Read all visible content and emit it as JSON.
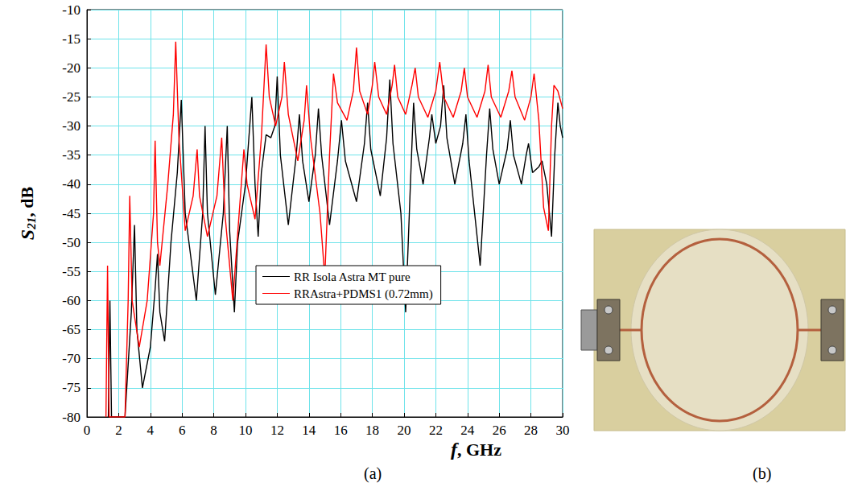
{
  "chart_data": {
    "type": "line",
    "x_label": "f, GHz",
    "y_label": "S21, dB",
    "xlim": [
      0,
      30
    ],
    "xticks": [
      0,
      2,
      4,
      6,
      8,
      10,
      12,
      14,
      16,
      18,
      20,
      22,
      24,
      26,
      28,
      30
    ],
    "ylim": [
      -80,
      -10
    ],
    "yticks": [
      -80,
      -75,
      -70,
      -65,
      -60,
      -55,
      -50,
      -45,
      -40,
      -35,
      -30,
      -25,
      -20,
      -15,
      -10
    ],
    "grid": true,
    "legend": "lower right",
    "series": [
      {
        "name": "RR Isola Astra MT pure",
        "color": "#000000",
        "line_style": "solid",
        "x": [
          1.35,
          1.45,
          1.55,
          2.4,
          2.8,
          3.0,
          3.15,
          3.5,
          4.0,
          4.3,
          4.45,
          4.6,
          4.9,
          5.3,
          5.7,
          5.95,
          6.2,
          6.9,
          7.3,
          7.45,
          7.6,
          8.1,
          8.6,
          8.85,
          9.0,
          9.3,
          9.5,
          10.0,
          10.4,
          10.6,
          10.8,
          11.0,
          11.3,
          11.6,
          11.85,
          12.0,
          12.2,
          12.7,
          13.2,
          13.4,
          13.6,
          14.0,
          14.4,
          14.6,
          14.8,
          15.3,
          15.8,
          16.05,
          16.3,
          17.0,
          17.5,
          17.7,
          17.9,
          18.5,
          18.9,
          19.1,
          19.3,
          19.8,
          20.1,
          20.4,
          20.6,
          20.8,
          21.2,
          21.6,
          21.75,
          22.0,
          22.3,
          22.5,
          22.7,
          23.2,
          23.7,
          23.9,
          24.1,
          24.8,
          25.2,
          25.4,
          25.6,
          26.0,
          26.5,
          26.7,
          26.9,
          27.4,
          27.7,
          27.85,
          28.1,
          28.5,
          28.7,
          29.0,
          29.3,
          29.5,
          29.7,
          29.85,
          30.0
        ],
        "values": [
          -80,
          -60,
          -80,
          -80,
          -62,
          -47,
          -65,
          -75,
          -68,
          -58,
          -52,
          -62,
          -67,
          -50,
          -38,
          -25.5,
          -45,
          -60,
          -45,
          -30,
          -45,
          -59,
          -45,
          -30,
          -48,
          -62,
          -50,
          -40,
          -25,
          -40,
          -49,
          -38,
          -31.5,
          -32,
          -30,
          -21.5,
          -35,
          -47,
          -35,
          -28,
          -36,
          -43,
          -35,
          -27,
          -35,
          -47,
          -36,
          -29,
          -36,
          -43,
          -33,
          -26,
          -34,
          -42,
          -32,
          -22,
          -33,
          -45,
          -62,
          -40,
          -26,
          -34,
          -40,
          -32,
          -28,
          -33,
          -30,
          -23,
          -32,
          -40,
          -33,
          -28,
          -36,
          -54,
          -35,
          -27,
          -34,
          -40,
          -34,
          -29,
          -35,
          -40,
          -35,
          -33,
          -38,
          -37,
          -36,
          -40,
          -49,
          -35,
          -26,
          -30,
          -32
        ]
      },
      {
        "name": "RRAstra+PDMS1 (0.72mm)",
        "color": "#ff0000",
        "line_style": "solid",
        "x": [
          1.2,
          1.3,
          1.4,
          2.4,
          2.6,
          2.7,
          2.85,
          3.3,
          3.8,
          4.2,
          4.3,
          4.45,
          4.6,
          5.1,
          5.45,
          5.6,
          5.8,
          6.2,
          6.7,
          6.95,
          7.1,
          7.6,
          8.2,
          8.5,
          8.7,
          9.2,
          9.6,
          9.9,
          10.1,
          10.6,
          11.0,
          11.3,
          11.5,
          11.9,
          12.3,
          12.45,
          12.7,
          13.3,
          13.7,
          13.85,
          14.1,
          14.7,
          15.0,
          15.3,
          15.55,
          15.8,
          16.4,
          16.8,
          17.0,
          17.2,
          17.7,
          18.0,
          18.15,
          18.4,
          18.9,
          19.25,
          19.4,
          19.6,
          20.1,
          20.5,
          20.7,
          20.9,
          21.5,
          22.0,
          22.25,
          22.5,
          23.1,
          23.6,
          23.8,
          24.0,
          24.6,
          25.1,
          25.3,
          25.5,
          26.1,
          26.6,
          26.8,
          27.0,
          27.6,
          28.0,
          28.2,
          28.5,
          28.8,
          29.1,
          29.3,
          29.45,
          29.7,
          30.0
        ],
        "values": [
          -80,
          -54,
          -80,
          -80,
          -60,
          -42,
          -60,
          -68,
          -60,
          -45,
          -32.5,
          -50,
          -54,
          -40,
          -28,
          -15.5,
          -32,
          -48,
          -42,
          -34,
          -42,
          -49,
          -42,
          -32,
          -45,
          -60,
          -45,
          -34,
          -40,
          -46,
          -32,
          -16,
          -25,
          -30,
          -25,
          -19,
          -28,
          -36,
          -29,
          -23,
          -32,
          -45,
          -56,
          -35,
          -21,
          -26,
          -29,
          -24,
          -16.5,
          -24,
          -28,
          -23,
          -19,
          -25,
          -28,
          -23,
          -19.5,
          -25,
          -28,
          -23,
          -20,
          -25,
          -28.5,
          -24,
          -19,
          -25,
          -28.5,
          -24,
          -20,
          -25,
          -28.5,
          -24,
          -19.5,
          -25,
          -28.5,
          -24,
          -20.5,
          -25,
          -29,
          -25,
          -21,
          -29,
          -44,
          -48,
          -30,
          -23,
          -24,
          -27
        ]
      }
    ]
  },
  "panel_labels": [
    "(a)",
    "(b)"
  ]
}
